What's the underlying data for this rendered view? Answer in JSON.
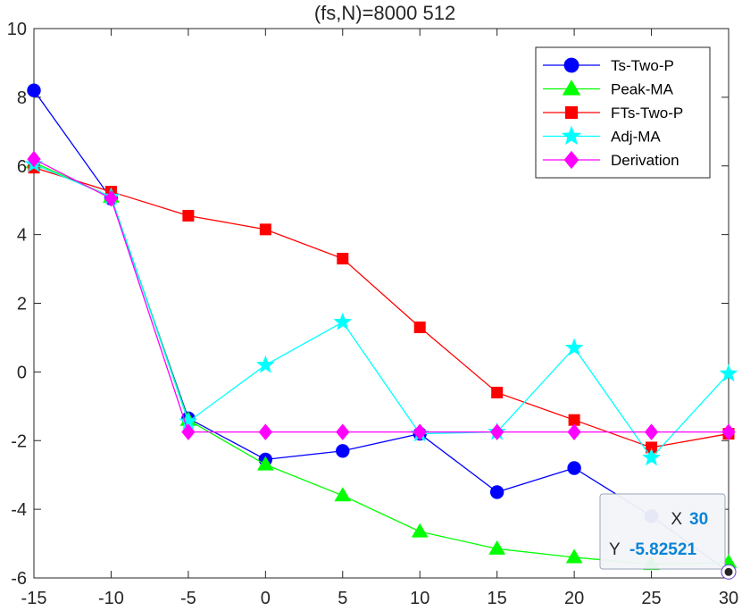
{
  "chart_data": {
    "type": "line",
    "title": "(fs,N)=8000   512",
    "xlabel": "",
    "ylabel": "",
    "xlim": [
      -15,
      30
    ],
    "ylim": [
      -6,
      10
    ],
    "x_ticks": [
      -15,
      -10,
      -5,
      0,
      5,
      10,
      15,
      20,
      25,
      30
    ],
    "y_ticks": [
      -6,
      -4,
      -2,
      0,
      2,
      4,
      6,
      8,
      10
    ],
    "x_tick_labels": [
      "-15",
      "-10",
      "-5",
      "0",
      "5",
      "10",
      "15",
      "20",
      "25",
      "30"
    ],
    "y_tick_labels": [
      "-6",
      "-4",
      "-2",
      "0",
      "2",
      "4",
      "6",
      "8",
      "10"
    ],
    "grid": false,
    "legend_position": "top-right",
    "x": [
      -15,
      -10,
      -5,
      0,
      5,
      10,
      15,
      20,
      25,
      30
    ],
    "series": [
      {
        "name": "Ts-Two-P",
        "color": "#0000ff",
        "marker": "circle",
        "values": [
          8.2,
          5.05,
          -1.35,
          -2.55,
          -2.3,
          -1.8,
          -3.5,
          -2.8,
          -4.2,
          -5.82521
        ]
      },
      {
        "name": "Peak-MA",
        "color": "#00ff00",
        "marker": "triangle",
        "values": [
          6.1,
          5.1,
          -1.4,
          -2.7,
          -3.6,
          -4.65,
          -5.15,
          -5.4,
          -5.6,
          -5.55
        ]
      },
      {
        "name": "FTs-Two-P",
        "color": "#ff0000",
        "marker": "square",
        "values": [
          5.95,
          5.25,
          4.55,
          4.15,
          3.3,
          1.3,
          -0.6,
          -1.4,
          -2.2,
          -1.8
        ]
      },
      {
        "name": "Adj-MA",
        "color": "#00ffff",
        "marker": "star",
        "values": [
          6.05,
          5.1,
          -1.45,
          0.2,
          1.45,
          -1.8,
          -1.75,
          0.7,
          -2.5,
          -0.05
        ]
      },
      {
        "name": "Derivation",
        "color": "#ff00ff",
        "marker": "diamond",
        "values": [
          6.2,
          5.05,
          -1.75,
          -1.75,
          -1.75,
          -1.75,
          -1.75,
          -1.75,
          -1.75,
          -1.75
        ]
      }
    ],
    "datatip": {
      "x_label": "X",
      "x_value": "30",
      "y_label": "Y",
      "y_value": "-5.82521",
      "point": [
        30,
        -5.82521
      ]
    }
  }
}
